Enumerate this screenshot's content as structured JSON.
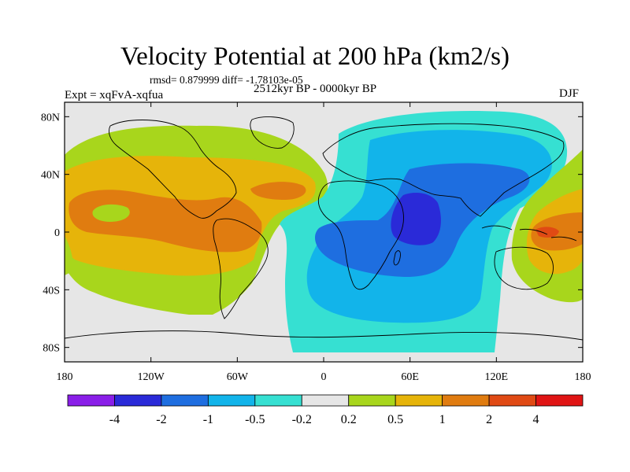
{
  "figure": {
    "title": "Velocity Potential at 200 hPa (km2/s)",
    "stats": "rmsd= 0.879999 diff= -1.78103e-05",
    "experiment": "Expt = xqFvA-xqfua",
    "period": "2512kyr BP - 0000kyr BP",
    "season": "DJF"
  },
  "map": {
    "lat_labels": [
      "80N",
      "40N",
      "0",
      "40S",
      "80S"
    ],
    "lon_labels": [
      "180",
      "120W",
      "60W",
      "0",
      "60E",
      "120E",
      "180"
    ],
    "lat_values": [
      80,
      40,
      0,
      -40,
      -80
    ],
    "lon_values": [
      -180,
      -120,
      -60,
      0,
      60,
      120,
      180
    ],
    "extent": {
      "lon": [
        -180,
        180
      ],
      "lat": [
        -90,
        90
      ]
    }
  },
  "colorbar": {
    "colors": [
      "#8a1ee8",
      "#2a2ad8",
      "#1e6ee0",
      "#12b4ea",
      "#36e0d2",
      "#e6e6e6",
      "#a8d61c",
      "#e6b40a",
      "#e07c10",
      "#e04a14",
      "#e01414"
    ],
    "labels": [
      "-4",
      "-2",
      "-1",
      "-0.5",
      "-0.2",
      "0.2",
      "0.5",
      "1",
      "2",
      "4"
    ]
  }
}
